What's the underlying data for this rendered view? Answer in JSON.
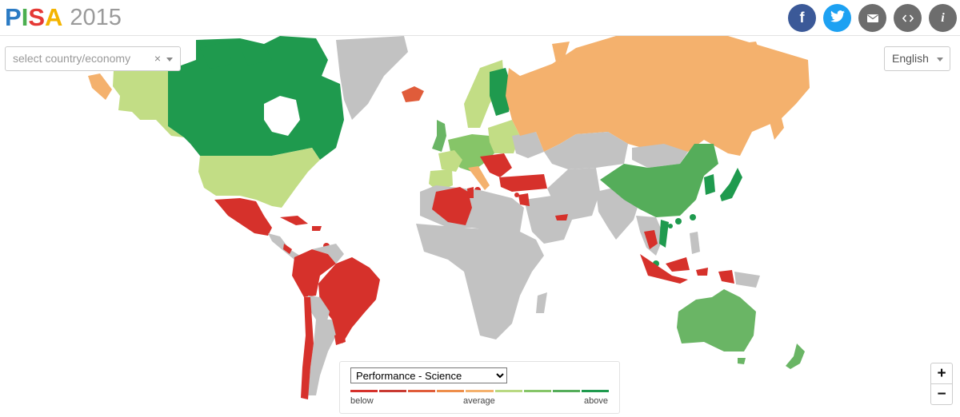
{
  "header": {
    "logo_letters": [
      {
        "char": "P",
        "color": "#2b7bc4"
      },
      {
        "char": "I",
        "color": "#4caf50"
      },
      {
        "char": "S",
        "color": "#e53935"
      },
      {
        "char": "A",
        "color": "#f4b400"
      }
    ],
    "year": "2015"
  },
  "share_buttons": [
    {
      "name": "facebook-button",
      "icon": "facebook-icon",
      "glyph": "f",
      "color": "#3b5998"
    },
    {
      "name": "twitter-button",
      "icon": "twitter-icon",
      "glyph": "🐦",
      "color": "#1da1f2"
    },
    {
      "name": "email-button",
      "icon": "envelope-icon",
      "glyph": "✉",
      "color": "#6d6d6d"
    },
    {
      "name": "embed-button",
      "icon": "code-icon",
      "glyph": "‹›",
      "color": "#6d6d6d"
    },
    {
      "name": "info-button",
      "icon": "info-icon",
      "glyph": "i",
      "color": "#6d6d6d"
    }
  ],
  "country_select": {
    "placeholder": "select country/economy",
    "clear": "×"
  },
  "language_select": {
    "value": "English"
  },
  "legend": {
    "indicator": "Performance - Science",
    "options": [
      "Performance - Science"
    ],
    "label_below": "below",
    "label_average": "average",
    "label_above": "above",
    "scale_colors": [
      "#d6312b",
      "#c93a32",
      "#e05c3a",
      "#ee8e4a",
      "#f4b16d",
      "#b9d982",
      "#86c568",
      "#55ad5a",
      "#1f9a4e"
    ]
  },
  "map_colors": {
    "no_data": "#c2c2c2",
    "far_below": "#d6312b",
    "below": "#e05c3a",
    "slightly_below": "#f4b16d",
    "average": "#c2dd85",
    "above": "#6ab565",
    "far_above": "#1f9a4e"
  },
  "zoom": {
    "in": "+",
    "out": "−"
  }
}
